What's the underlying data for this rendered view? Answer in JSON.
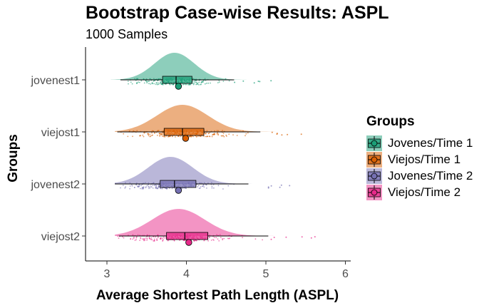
{
  "title": "Bootstrap Case-wise Results: ASPL",
  "subtitle": "1000 Samples",
  "legend": {
    "title": "Groups",
    "entries": [
      "Jovenes/Time 1",
      "Viejos/Time 1",
      "Jovenes/Time 2",
      "Viejos/Time 2"
    ]
  },
  "colors": {
    "jovenest1": "#1b9e77",
    "viejost1": "#d95f02",
    "jovenest2": "#7570b3",
    "viejost2": "#e7298a"
  },
  "chart_data": {
    "type": "raincloud",
    "title": "Bootstrap Case-wise Results: ASPL",
    "subtitle": "1000 Samples",
    "xlabel": "Average Shortest Path Length (ASPL)",
    "ylabel": "Groups",
    "xlim": [
      2.7,
      6.1
    ],
    "xticks": [
      3,
      4,
      5,
      6
    ],
    "grid": false,
    "legend_position": "right",
    "categories": [
      "jovenest1",
      "viejost1",
      "jovenest2",
      "viejost2"
    ],
    "series": [
      {
        "name": "Jovenes/Time 1",
        "group": "jovenest1",
        "color": "#1b9e77",
        "min": 3.05,
        "max": 5.1,
        "density_peak": 3.85,
        "density_sd": 0.25,
        "whisker_low": 3.17,
        "q1": 3.7,
        "median": 3.87,
        "q3": 4.07,
        "whisker_high": 4.6,
        "mean": 3.9
      },
      {
        "name": "Viejos/Time 1",
        "group": "viejost1",
        "color": "#d95f02",
        "min": 3.1,
        "max": 5.6,
        "density_peak": 3.95,
        "density_sd": 0.32,
        "whisker_low": 3.13,
        "q1": 3.72,
        "median": 3.95,
        "q3": 4.22,
        "whisker_high": 4.93,
        "mean": 3.99
      },
      {
        "name": "Jovenes/Time 2",
        "group": "jovenest2",
        "color": "#7570b3",
        "min": 3.1,
        "max": 5.3,
        "density_peak": 3.8,
        "density_sd": 0.28,
        "whisker_low": 3.1,
        "q1": 3.67,
        "median": 3.85,
        "q3": 4.12,
        "whisker_high": 4.78,
        "mean": 3.9
      },
      {
        "name": "Viejos/Time 2",
        "group": "viejost2",
        "color": "#e7298a",
        "min": 3.1,
        "max": 5.7,
        "density_peak": 3.9,
        "density_sd": 0.33,
        "whisker_low": 3.15,
        "q1": 3.75,
        "median": 3.98,
        "q3": 4.27,
        "whisker_high": 5.03,
        "mean": 4.03
      }
    ]
  }
}
